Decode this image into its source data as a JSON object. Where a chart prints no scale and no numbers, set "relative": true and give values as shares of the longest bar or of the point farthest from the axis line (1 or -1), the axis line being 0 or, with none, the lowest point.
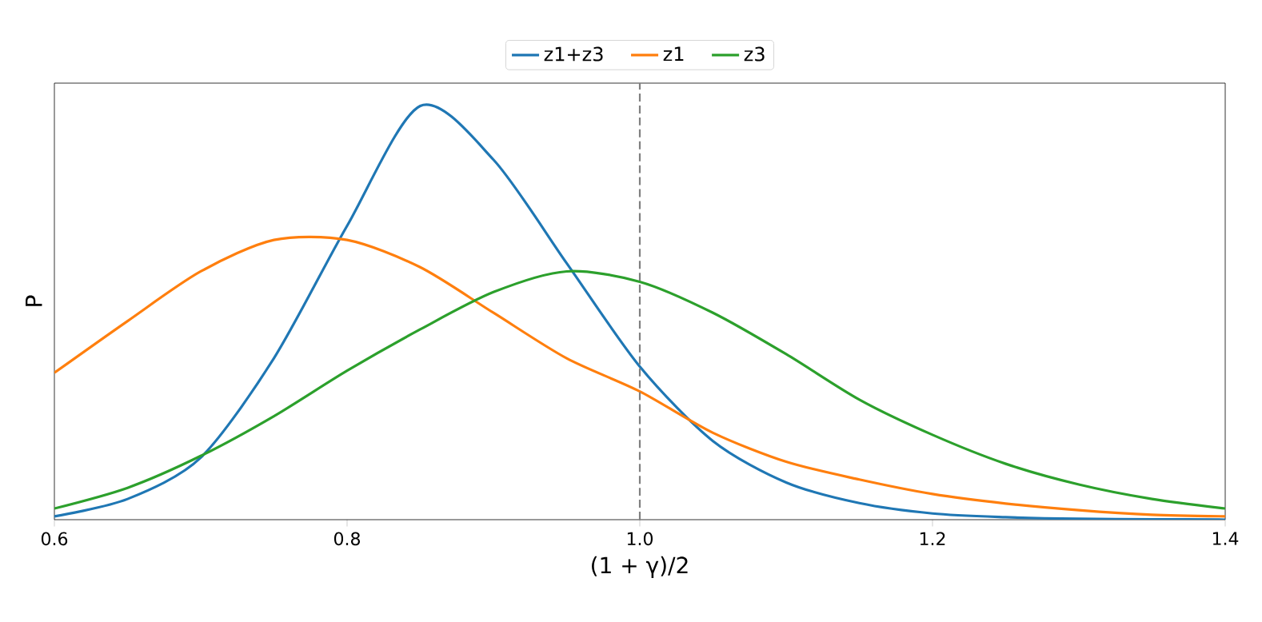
{
  "chart_data": {
    "type": "line",
    "relative": true,
    "xlabel": "(1 + γ)/2",
    "ylabel": "P",
    "x": [
      0.6,
      0.65,
      0.7,
      0.75,
      0.8,
      0.85,
      0.9,
      0.95,
      1.0,
      1.05,
      1.1,
      1.15,
      1.2,
      1.25,
      1.3,
      1.35,
      1.4
    ],
    "xlim": [
      0.6,
      1.4
    ],
    "xticks": [
      {
        "value": 0.6,
        "label": "0.6"
      },
      {
        "value": 0.8,
        "label": "0.8"
      },
      {
        "value": 1.0,
        "label": "1.0"
      },
      {
        "value": 1.2,
        "label": "1.2"
      },
      {
        "value": 1.4,
        "label": "1.4"
      }
    ],
    "series": [
      {
        "name": "z1+z3",
        "color": "#1f77b4",
        "values": [
          0.008,
          0.05,
          0.15,
          0.39,
          0.71,
          1.0,
          0.87,
          0.62,
          0.37,
          0.19,
          0.09,
          0.04,
          0.015,
          0.006,
          0.002,
          0.001,
          0.0
        ]
      },
      {
        "name": "z1",
        "color": "#ff7f0e",
        "values": [
          0.355,
          0.48,
          0.6,
          0.676,
          0.676,
          0.61,
          0.5,
          0.39,
          0.31,
          0.21,
          0.14,
          0.097,
          0.062,
          0.039,
          0.023,
          0.012,
          0.008
        ]
      },
      {
        "name": "z3",
        "color": "#2ca02c",
        "values": [
          0.027,
          0.077,
          0.154,
          0.25,
          0.36,
          0.46,
          0.55,
          0.6,
          0.575,
          0.5,
          0.4,
          0.29,
          0.205,
          0.135,
          0.085,
          0.05,
          0.027
        ]
      }
    ],
    "ref_lines": [
      {
        "axis": "x",
        "value": 1.0,
        "color": "#808080",
        "line_style": "dashed"
      }
    ],
    "legend": "top",
    "grid": false,
    "marker": "none",
    "line_style": "solid"
  }
}
